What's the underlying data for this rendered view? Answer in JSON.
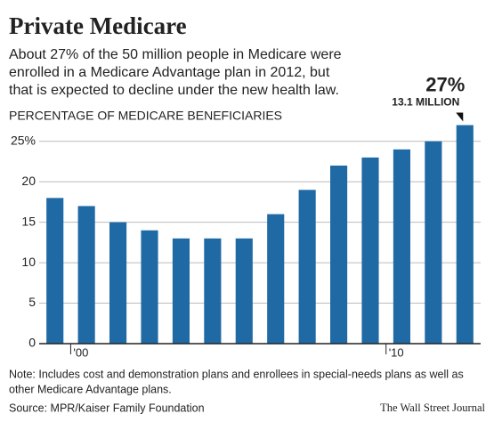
{
  "chart_data": {
    "type": "bar",
    "title": "Private Medicare",
    "subtitle": [
      "About 27% of the 50 million people in Medicare were",
      "enrolled in a Medicare Advantage plan in 2012, but",
      "that is expected to decline under the new health law."
    ],
    "y_axis_label": "PERCENTAGE OF MEDICARE BENEFICIARIES",
    "categories": [
      null,
      "'00",
      null,
      null,
      null,
      null,
      null,
      null,
      null,
      null,
      null,
      "'10",
      null,
      null
    ],
    "values": [
      18,
      17,
      15,
      14,
      13,
      13,
      13,
      16,
      19,
      22,
      23,
      24,
      25,
      27
    ],
    "value_labels": [
      null,
      null,
      null,
      null,
      null,
      null,
      null,
      null,
      null,
      null,
      null,
      null,
      null,
      "27%"
    ],
    "annotation": "13.1 MILLION",
    "color": "#1f6aa5",
    "ylim": [
      0,
      27.5
    ],
    "yticks": [
      0,
      5,
      10,
      15,
      20,
      {
        "value": 25,
        "label": "25%"
      }
    ],
    "grid": true,
    "note": [
      "Note: Includes cost and demonstration plans and enrollees in special-needs plans as well as",
      "other Medicare Advantage plans."
    ],
    "source": "Source: MPR/Kaiser Family Foundation",
    "credit": "The Wall Street Journal"
  }
}
